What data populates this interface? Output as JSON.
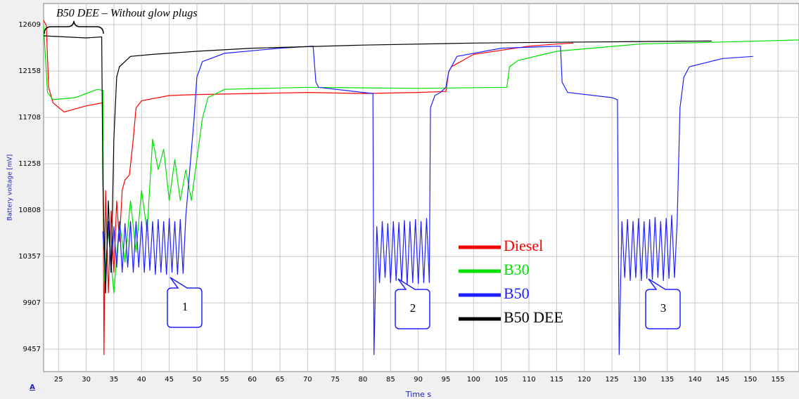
{
  "chart_data": {
    "type": "line",
    "annotation": "B50 DEE – Without glow plugs",
    "y_label": "Battery voltage [mV]",
    "x_label": "Time s",
    "corner_label": "A",
    "callouts": [
      "1",
      "2",
      "3"
    ],
    "xlim": [
      22.3,
      158.8
    ],
    "ylim": [
      9239,
      12814
    ],
    "xticks": [
      25,
      30,
      35,
      40,
      45,
      50,
      55,
      60,
      65,
      70,
      75,
      80,
      85,
      90,
      95,
      100,
      105,
      110,
      115,
      120,
      125,
      130,
      135,
      140,
      145,
      150,
      155
    ],
    "yticks": [
      9457,
      9907,
      10357,
      10808,
      11258,
      11708,
      12158,
      12609
    ],
    "grid": true,
    "series": [
      {
        "name": "Diesel",
        "color": "#ff0000",
        "x": [
          22.3,
          22.8,
          23.2,
          24,
          26,
          30,
          33,
          33.2,
          33.5,
          34,
          34.5,
          35,
          35.5,
          36,
          36.5,
          37,
          37.8,
          38.5,
          39,
          40,
          45,
          50,
          60,
          70,
          80,
          90,
          95,
          95.5,
          96,
          100,
          110,
          115,
          118
        ],
        "values": [
          12650,
          12600,
          12000,
          11850,
          11760,
          11820,
          11850,
          9400,
          11000,
          10000,
          10800,
          10200,
          10900,
          10500,
          11000,
          11100,
          11150,
          11500,
          11800,
          11870,
          11920,
          11930,
          11940,
          11950,
          11940,
          11950,
          11960,
          12150,
          12200,
          12320,
          12400,
          12420,
          12430
        ]
      },
      {
        "name": "B30",
        "color": "#00e000",
        "x": [
          22.3,
          23,
          24,
          28,
          32,
          33,
          33.2,
          34,
          35,
          36,
          37,
          38,
          39,
          40,
          41,
          42,
          43,
          44,
          45,
          46,
          47,
          48,
          49,
          50,
          51,
          52,
          55,
          70,
          90,
          106,
          106.5,
          108,
          115,
          130,
          145,
          158.8
        ],
        "values": [
          12600,
          11950,
          11880,
          11900,
          11980,
          11970,
          10100,
          10600,
          10000,
          10700,
          10300,
          10900,
          10400,
          11000,
          10600,
          11500,
          11200,
          11400,
          10900,
          11300,
          10900,
          11200,
          10900,
          11300,
          11700,
          11900,
          11980,
          12000,
          11990,
          12000,
          12200,
          12260,
          12350,
          12420,
          12440,
          12460
        ]
      },
      {
        "name": "B50",
        "color": "#2020ff",
        "x": [
          33,
          33.5,
          34,
          34.5,
          35,
          35.5,
          36,
          36.5,
          37,
          37.5,
          38,
          38.5,
          39,
          39.5,
          40,
          40.5,
          41,
          41.5,
          42,
          42.5,
          43,
          43.5,
          44,
          44.5,
          45,
          45.5,
          46,
          46.5,
          47,
          47.5,
          48,
          49.5,
          50,
          51,
          55,
          65,
          71,
          71.5,
          72,
          80,
          81.8,
          82,
          82.5,
          83,
          83.5,
          84,
          84.5,
          85,
          85.5,
          86,
          86.5,
          87,
          87.5,
          88,
          88.5,
          89,
          89.5,
          90,
          90.5,
          91,
          91.5,
          92,
          92.2,
          93,
          94,
          95,
          95.5,
          97,
          105,
          115.7,
          116,
          117,
          125,
          126,
          126.3,
          126.8,
          127.3,
          127.8,
          128.3,
          128.8,
          129.3,
          129.8,
          130.3,
          130.8,
          131.3,
          131.8,
          132.3,
          132.8,
          133.3,
          133.8,
          134.3,
          134.8,
          135.3,
          135.8,
          136.3,
          136.8,
          137.3,
          138,
          139,
          145,
          150.5
        ],
        "values": [
          10600,
          10150,
          10700,
          10200,
          10650,
          10250,
          10700,
          10200,
          10680,
          10250,
          10700,
          10200,
          10700,
          10250,
          10700,
          10200,
          10720,
          10220,
          10700,
          10180,
          10720,
          10200,
          10700,
          10180,
          10730,
          10200,
          10700,
          10180,
          10720,
          10190,
          10750,
          11700,
          12100,
          12250,
          12330,
          12380,
          12400,
          12050,
          12000,
          11950,
          11940,
          9400,
          10650,
          10100,
          10700,
          10150,
          10680,
          10100,
          10700,
          10120,
          10690,
          10100,
          10710,
          10080,
          10700,
          10100,
          10720,
          10090,
          10700,
          10100,
          10730,
          10100,
          11800,
          11920,
          11950,
          12000,
          12150,
          12300,
          12380,
          12400,
          12050,
          11950,
          11900,
          11880,
          9400,
          10700,
          10150,
          10720,
          10120,
          10700,
          10150,
          10730,
          10120,
          10700,
          10140,
          10720,
          10130,
          10740,
          10150,
          10700,
          10120,
          10730,
          10140,
          10760,
          10150,
          10720,
          11800,
          12100,
          12200,
          12280,
          12300
        ]
      },
      {
        "name": "B50 DEE",
        "color": "#000000",
        "x": [
          22.3,
          30,
          32.8,
          33,
          33.5,
          34,
          34.5,
          35,
          35.5,
          36,
          38,
          42,
          50,
          60,
          80,
          100,
          120,
          143
        ],
        "values": [
          12500,
          12480,
          12490,
          11100,
          10000,
          10900,
          10200,
          11500,
          12100,
          12200,
          12300,
          12320,
          12350,
          12380,
          12410,
          12430,
          12440,
          12450
        ]
      }
    ]
  }
}
